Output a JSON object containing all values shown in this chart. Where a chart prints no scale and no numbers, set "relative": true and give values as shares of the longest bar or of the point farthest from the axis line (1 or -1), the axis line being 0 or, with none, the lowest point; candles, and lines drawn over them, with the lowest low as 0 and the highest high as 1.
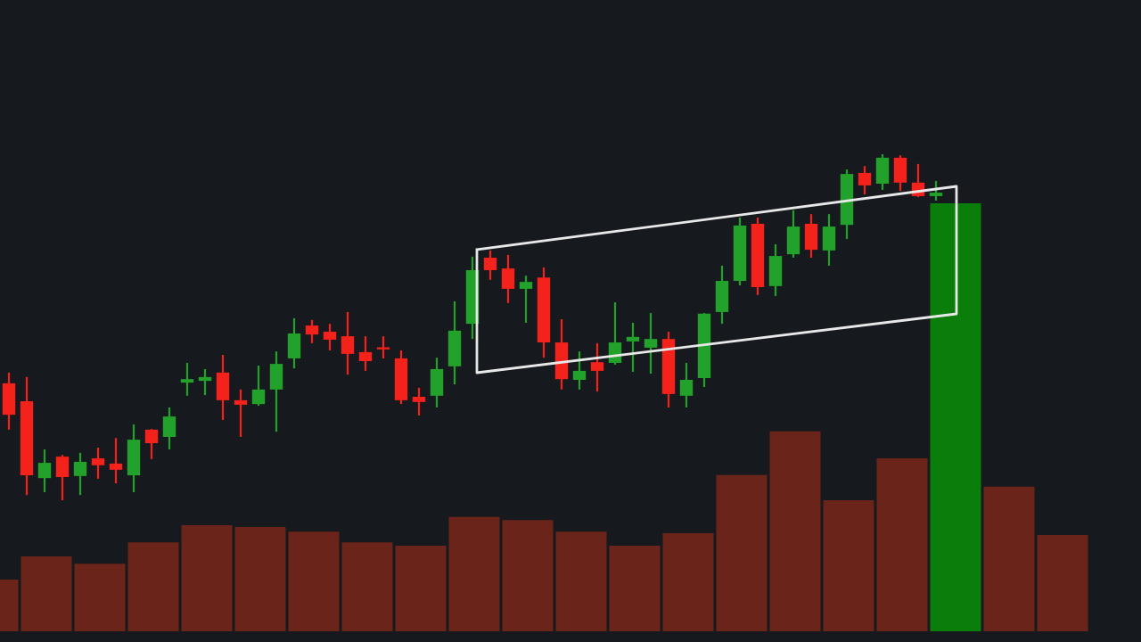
{
  "chart_data": [
    {
      "type": "candlestick",
      "relative": true,
      "categories": [
        null,
        null,
        null,
        null,
        null,
        null,
        null,
        null,
        null,
        null,
        null,
        null,
        null,
        null,
        null,
        null,
        null,
        null,
        null,
        null,
        null,
        null,
        null,
        null,
        null,
        null,
        null,
        null,
        null,
        null,
        null,
        null,
        null,
        null,
        null,
        null,
        null,
        null,
        null,
        null,
        null,
        null,
        null,
        null,
        null,
        null,
        null,
        null,
        null,
        null,
        null,
        null,
        null
      ],
      "ohlc": [
        [
          0.338,
          0.369,
          0.204,
          0.247
        ],
        [
          0.286,
          0.356,
          0.015,
          0.072
        ],
        [
          0.064,
          0.147,
          0.023,
          0.108
        ],
        [
          0.126,
          0.131,
          0,
          0.067
        ],
        [
          0.07,
          0.137,
          0.015,
          0.111
        ],
        [
          0.121,
          0.152,
          0.062,
          0.101
        ],
        [
          0.106,
          0.18,
          0.049,
          0.088
        ],
        [
          0.072,
          0.219,
          0.023,
          0.175
        ],
        [
          0.204,
          0.206,
          0.119,
          0.165
        ],
        [
          0.183,
          0.268,
          0.147,
          0.242
        ],
        [
          0.34,
          0.397,
          0.302,
          0.35
        ],
        [
          0.345,
          0.379,
          0.304,
          0.356
        ],
        [
          0.369,
          0.42,
          0.232,
          0.289
        ],
        [
          0.289,
          0.32,
          0.183,
          0.276
        ],
        [
          0.278,
          0.389,
          0.273,
          0.32
        ],
        [
          0.32,
          0.43,
          0.198,
          0.394
        ],
        [
          0.41,
          0.526,
          0.381,
          0.482
        ],
        [
          0.505,
          0.521,
          0.454,
          0.479
        ],
        [
          0.487,
          0.51,
          0.433,
          0.464
        ],
        [
          0.474,
          0.544,
          0.363,
          0.423
        ],
        [
          0.428,
          0.474,
          0.374,
          0.402
        ],
        [
          0.441,
          0.474,
          0.41,
          0.436
        ],
        [
          0.41,
          0.433,
          0.278,
          0.289
        ],
        [
          0.299,
          0.325,
          0.245,
          0.284
        ],
        [
          0.302,
          0.412,
          0.268,
          0.379
        ],
        [
          0.387,
          0.575,
          0.335,
          0.49
        ],
        [
          0.51,
          0.704,
          0.466,
          0.665
        ],
        [
          0.701,
          0.722,
          0.637,
          0.665
        ],
        [
          0.67,
          0.709,
          0.57,
          0.611
        ],
        [
          0.611,
          0.649,
          0.513,
          0.631
        ],
        [
          0.644,
          0.673,
          0.412,
          0.456
        ],
        [
          0.456,
          0.523,
          0.32,
          0.35
        ],
        [
          0.348,
          0.43,
          0.32,
          0.374
        ],
        [
          0.399,
          0.454,
          0.314,
          0.374
        ],
        [
          0.397,
          0.572,
          0.392,
          0.456
        ],
        [
          0.459,
          0.513,
          0.371,
          0.472
        ],
        [
          0.441,
          0.541,
          0.366,
          0.466
        ],
        [
          0.466,
          0.487,
          0.268,
          0.307
        ],
        [
          0.302,
          0.397,
          0.268,
          0.348
        ],
        [
          0.353,
          0.541,
          0.327,
          0.539
        ],
        [
          0.544,
          0.678,
          0.51,
          0.634
        ],
        [
          0.634,
          0.817,
          0.621,
          0.794
        ],
        [
          0.799,
          0.817,
          0.593,
          0.616
        ],
        [
          0.619,
          0.74,
          0.59,
          0.706
        ],
        [
          0.711,
          0.838,
          0.701,
          0.791
        ],
        [
          0.799,
          0.827,
          0.701,
          0.724
        ],
        [
          0.722,
          0.827,
          0.678,
          0.791
        ],
        [
          0.796,
          0.956,
          0.755,
          0.943
        ],
        [
          0.946,
          0.966,
          0.884,
          0.91
        ],
        [
          0.915,
          1,
          0.897,
          0.99
        ],
        [
          0.99,
          0.997,
          0.894,
          0.918
        ],
        [
          0.918,
          0.972,
          0.876,
          0.879
        ],
        [
          0.879,
          0.923,
          0.866,
          0.889
        ]
      ],
      "colors": [
        "#f5211b",
        "#f5211b",
        "#22a22a",
        "#f5211b",
        "#22a22a",
        "#f5211b",
        "#f5211b",
        "#22a22a",
        "#f5211b",
        "#22a22a",
        "#22a22a",
        "#22a22a",
        "#f5211b",
        "#f5211b",
        "#22a22a",
        "#22a22a",
        "#22a22a",
        "#f5211b",
        "#f5211b",
        "#f5211b",
        "#f5211b",
        "#f5211b",
        "#f5211b",
        "#f5211b",
        "#22a22a",
        "#22a22a",
        "#22a22a",
        "#f5211b",
        "#f5211b",
        "#22a22a",
        "#f5211b",
        "#f5211b",
        "#22a22a",
        "#f5211b",
        "#22a22a",
        "#22a22a",
        "#22a22a",
        "#f5211b",
        "#22a22a",
        "#22a22a",
        "#22a22a",
        "#22a22a",
        "#f5211b",
        "#22a22a",
        "#22a22a",
        "#f5211b",
        "#22a22a",
        "#22a22a",
        "#f5211b",
        "#22a22a",
        "#f5211b",
        "#f5211b",
        "#22a22a"
      ]
    },
    {
      "type": "bar",
      "relative": true,
      "categories": [
        null,
        null,
        null,
        null,
        null,
        null,
        null,
        null,
        null,
        null,
        null,
        null,
        null,
        null,
        null,
        null,
        null,
        null,
        null,
        null,
        null
      ],
      "values": [
        0.121,
        0.175,
        0.158,
        0.208,
        0.248,
        0.244,
        0.233,
        0.208,
        0.2,
        0.267,
        0.26,
        0.233,
        0.2,
        0.229,
        0.365,
        0.467,
        0.306,
        0.404,
        1,
        0.338,
        0.225
      ],
      "colors": [
        "#6b2419",
        "#6b2419",
        "#6b2419",
        "#6b2419",
        "#6b2419",
        "#6b2419",
        "#6b2419",
        "#6b2419",
        "#6b2419",
        "#6b2419",
        "#6b2419",
        "#6b2419",
        "#6b2419",
        "#6b2419",
        "#6b2419",
        "#6b2419",
        "#6b2419",
        "#6b2419",
        "#0b7d0b",
        "#6b2419",
        "#6b2419"
      ]
    }
  ]
}
